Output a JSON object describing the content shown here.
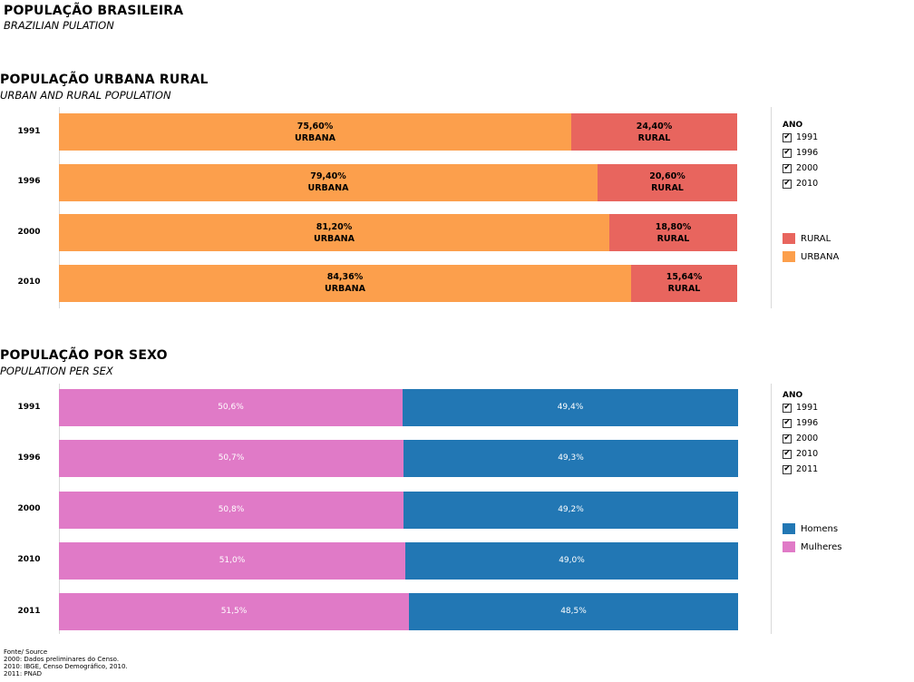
{
  "page": {
    "title": "POPULAÇÃO BRASILEIRA",
    "subtitle": "BRAZILIAN PULATION"
  },
  "colors": {
    "urbana": "#fc9f4c",
    "rural": "#e8655e",
    "mulheres": "#e07ac7",
    "homens": "#2277b4"
  },
  "chart_data": [
    {
      "type": "bar",
      "orientation": "horizontal-stacked-100",
      "title": "POPULAÇÃO URBANA RURAL",
      "subtitle": "URBAN AND RURAL POPULATION",
      "categories": [
        "1991",
        "1996",
        "2000",
        "2010"
      ],
      "series": [
        {
          "name": "URBANA",
          "values": [
            75.6,
            79.4,
            81.2,
            84.36
          ],
          "labels": [
            "75,60%",
            "79,40%",
            "81,20%",
            "84,36%"
          ]
        },
        {
          "name": "RURAL",
          "values": [
            24.4,
            20.6,
            18.8,
            15.64
          ],
          "labels": [
            "24,40%",
            "20,60%",
            "18,80%",
            "15,64%"
          ]
        }
      ],
      "legend": {
        "title": "ANO",
        "years": [
          "1991",
          "1996",
          "2000",
          "2010"
        ],
        "items": [
          "RURAL",
          "URBANA"
        ],
        "placement": "right"
      }
    },
    {
      "type": "bar",
      "orientation": "horizontal-stacked-100",
      "title": "POPULAÇÃO POR SEXO",
      "subtitle": "POPULATION PER SEX",
      "categories": [
        "1991",
        "1996",
        "2000",
        "2010",
        "2011"
      ],
      "series": [
        {
          "name": "Mulheres",
          "values": [
            50.6,
            50.7,
            50.8,
            51.0,
            51.5
          ],
          "labels": [
            "50,6%",
            "50,7%",
            "50,8%",
            "51,0%",
            "51,5%"
          ]
        },
        {
          "name": "Homens",
          "values": [
            49.4,
            49.3,
            49.2,
            49.0,
            48.5
          ],
          "labels": [
            "49,4%",
            "49,3%",
            "49,2%",
            "49,0%",
            "48,5%"
          ]
        }
      ],
      "legend": {
        "title": "ANO",
        "years": [
          "1991",
          "1996",
          "2000",
          "2010",
          "2011"
        ],
        "items": [
          "Homens",
          "Mulheres"
        ],
        "placement": "right"
      }
    }
  ],
  "source": {
    "lines": [
      "Fonte/ Source",
      "2000: Dados preliminares do Censo.",
      "2010: IBGE, Censo Demográfico, 2010.",
      "2011: PNAD"
    ]
  }
}
